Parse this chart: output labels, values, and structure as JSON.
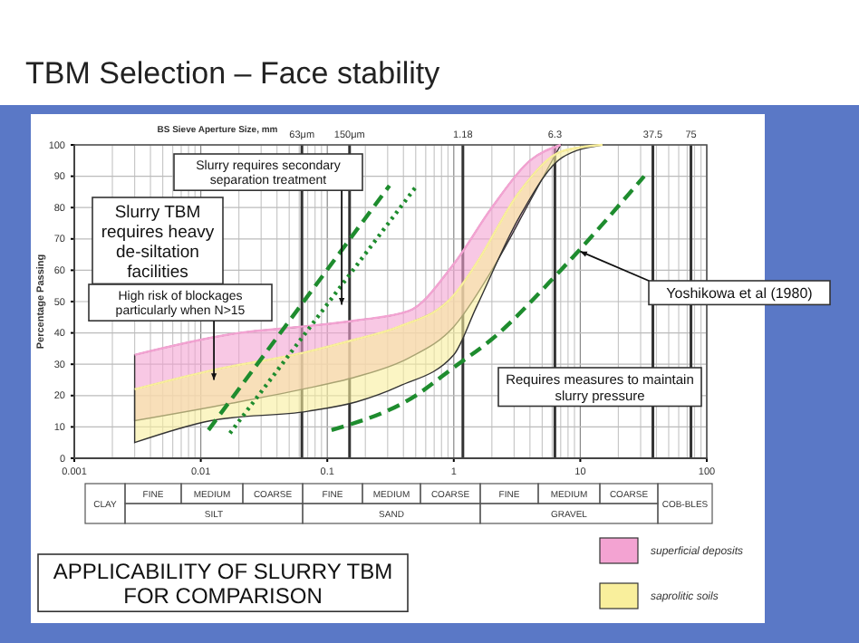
{
  "chart_data": {
    "type": "line",
    "title": "TBM Selection – Face stability",
    "ylabel": "Percentage Passing",
    "log": "x",
    "grid": true,
    "legend": "bottom right",
    "xlim": [
      0.001,
      100
    ],
    "ylim": [
      0,
      100
    ],
    "xticks": [
      0.001,
      0.01,
      0.1,
      1,
      10,
      100
    ],
    "yticks": [
      0,
      10,
      20,
      30,
      40,
      50,
      60,
      70,
      80,
      90,
      100
    ],
    "ref_lines": [
      {
        "axis": "x",
        "value": 0.063,
        "label": "63μm"
      },
      {
        "axis": "x",
        "value": 0.15,
        "label": "150μm"
      },
      {
        "axis": "x",
        "value": 1.18,
        "label": "1.18"
      },
      {
        "axis": "x",
        "value": 6.3,
        "label": "6.3"
      },
      {
        "axis": "x",
        "value": 37.5,
        "label": "37.5"
      },
      {
        "axis": "x",
        "value": 75,
        "label": "75"
      }
    ],
    "series": [
      {
        "name": "superficial deposits",
        "color": "#f3a3d2",
        "x": [
          0.003,
          0.02,
          0.063,
          0.17,
          0.44,
          1,
          2,
          4,
          7
        ],
        "values": [
          33,
          40,
          42,
          44,
          47,
          62,
          80,
          95,
          100
        ],
        "lower": [
          12,
          18,
          22,
          26,
          32,
          42,
          60,
          82,
          100
        ],
        "upper": [
          33,
          40,
          42,
          44,
          47,
          62,
          80,
          95,
          100
        ]
      },
      {
        "name": "saprolitic soils",
        "color": "#f9ef9c",
        "x": [
          0.003,
          0.012,
          0.07,
          0.17,
          0.37,
          1,
          1.5,
          3.3,
          7.2,
          15
        ],
        "values": [
          22,
          28,
          34,
          38,
          42,
          52,
          62,
          85,
          98,
          100
        ],
        "lower": [
          5,
          12,
          15,
          18,
          23,
          33,
          48,
          77,
          96,
          100
        ],
        "upper": [
          22,
          28,
          34,
          38,
          42,
          52,
          62,
          85,
          98,
          100
        ]
      },
      {
        "type": "line",
        "color": "#1e8c2e",
        "line_style": "dashed",
        "x": [
          0.0115,
          0.31
        ],
        "values": [
          9,
          87
        ]
      },
      {
        "type": "line",
        "color": "#1e8c2e",
        "line_style": "dotted",
        "x": [
          0.017,
          0.51
        ],
        "values": [
          8,
          87
        ]
      },
      {
        "type": "line",
        "color": "#1e8c2e",
        "line_style": "dashed",
        "x": [
          0.108,
          0.5,
          1,
          2,
          7,
          32
        ],
        "values": [
          9,
          20,
          29,
          38,
          60,
          90
        ]
      }
    ],
    "annotations": [
      {
        "text": "Slurry requires secondary separation treatment",
        "x": 0.13,
        "y": 49
      },
      "Slurry TBM requires heavy de-siltation facilities",
      {
        "text": "High risk of blockages particularly when N>15",
        "x": 0.0127,
        "y": 25
      },
      {
        "text": "Yoshikowa et al (1980)",
        "x": 10,
        "y": 66
      },
      "Requires measures to maintain slurry pressure",
      "APPLICABILITY OF SLURRY TBM FOR COMPARISON",
      "BS Sieve Aperture Size, mm",
      "CLAY",
      "FINE",
      "MEDIUM",
      "COARSE",
      "FINE",
      "MEDIUM",
      "COARSE",
      "FINE",
      "MEDIUM",
      "COARSE",
      "SILT",
      "SAND",
      "GRAVEL",
      "COB-BLES"
    ]
  }
}
